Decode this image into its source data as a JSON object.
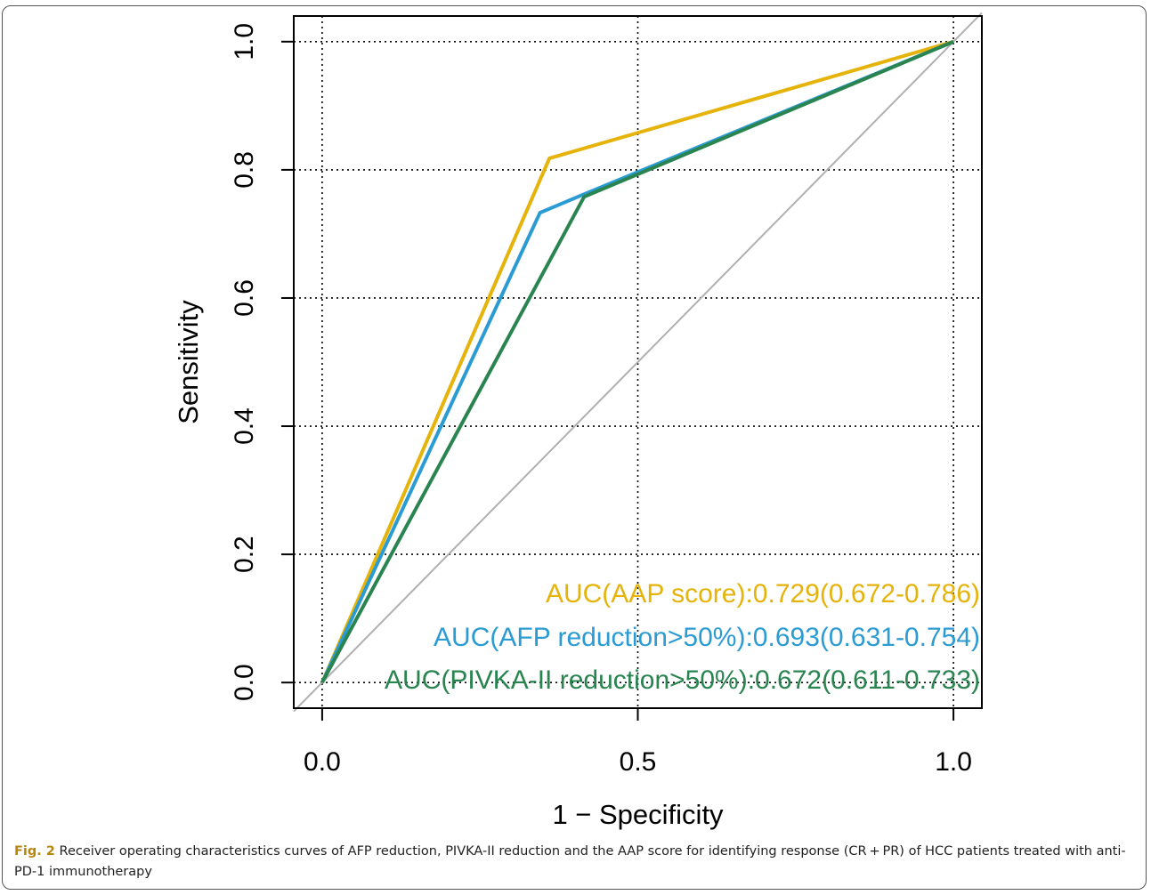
{
  "chart_data": {
    "type": "line",
    "xlabel": "1 − Specificity",
    "ylabel": "Sensitivity",
    "xlim": [
      -0.045,
      1.045
    ],
    "ylim": [
      -0.04,
      1.04
    ],
    "xticks": [
      "0.0",
      "0.5",
      "1.0"
    ],
    "yticks": [
      "0.0",
      "0.2",
      "0.4",
      "0.6",
      "0.8",
      "1.0"
    ],
    "grid": "dotted",
    "series": [
      {
        "name": "AAP score",
        "color": "#e5b30a",
        "x": [
          0,
          0.36,
          1
        ],
        "y": [
          0,
          0.818,
          1
        ]
      },
      {
        "name": "AFP reduction>50%",
        "color": "#2b9bd4",
        "x": [
          0,
          0.345,
          0.41,
          1
        ],
        "y": [
          0,
          0.733,
          0.76,
          1
        ]
      },
      {
        "name": "PIVKA-II reduction>50%",
        "color": "#2a8450",
        "x": [
          0,
          0.415,
          1
        ],
        "y": [
          0,
          0.758,
          1
        ]
      }
    ],
    "reference_line": {
      "x": [
        -0.045,
        1.045
      ],
      "y": [
        -0.045,
        1.045
      ],
      "color": "#b0b0b0"
    },
    "annotations": [
      {
        "text": "AUC(AAP score):0.729(0.672-0.786)",
        "color": "#e5b30a"
      },
      {
        "text": "AUC(AFP reduction>50%):0.693(0.631-0.754)",
        "color": "#2b9bd4"
      },
      {
        "text": "AUC(PIVKA-II reduction>50%):0.672(0.611-0.733)",
        "color": "#2a8450"
      }
    ]
  },
  "caption": {
    "label": "Fig. 2",
    "text": " Receiver operating characteristics curves of AFP reduction, PIVKA-II reduction and the AAP score for identifying response (CR + PR) of HCC patients treated with anti-PD-1 immunotherapy"
  }
}
